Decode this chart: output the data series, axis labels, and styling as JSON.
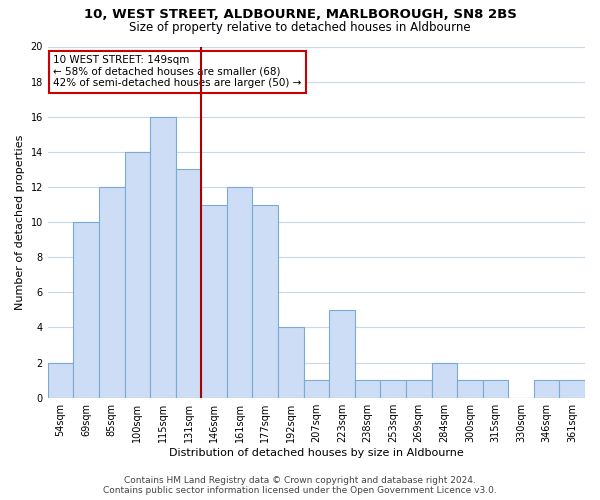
{
  "title": "10, WEST STREET, ALDBOURNE, MARLBOROUGH, SN8 2BS",
  "subtitle": "Size of property relative to detached houses in Aldbourne",
  "xlabel": "Distribution of detached houses by size in Aldbourne",
  "ylabel": "Number of detached properties",
  "categories": [
    "54sqm",
    "69sqm",
    "85sqm",
    "100sqm",
    "115sqm",
    "131sqm",
    "146sqm",
    "161sqm",
    "177sqm",
    "192sqm",
    "207sqm",
    "223sqm",
    "238sqm",
    "253sqm",
    "269sqm",
    "284sqm",
    "300sqm",
    "315sqm",
    "330sqm",
    "346sqm",
    "361sqm"
  ],
  "values": [
    2,
    10,
    12,
    14,
    16,
    13,
    11,
    12,
    11,
    4,
    1,
    5,
    1,
    1,
    1,
    2,
    1,
    1,
    0,
    1,
    1
  ],
  "bar_color": "#ccddf5",
  "bar_edge_color": "#7baad4",
  "vline_color": "#aa0000",
  "vline_x_index": 6,
  "annotation_text": "10 WEST STREET: 149sqm\n← 58% of detached houses are smaller (68)\n42% of semi-detached houses are larger (50) →",
  "annotation_box_color": "#ffffff",
  "annotation_box_edge": "#cc0000",
  "ylim": [
    0,
    20
  ],
  "yticks": [
    0,
    2,
    4,
    6,
    8,
    10,
    12,
    14,
    16,
    18,
    20
  ],
  "footer_line1": "Contains HM Land Registry data © Crown copyright and database right 2024.",
  "footer_line2": "Contains public sector information licensed under the Open Government Licence v3.0.",
  "bg_color": "#ffffff",
  "grid_color": "#c8d8ea",
  "title_fontsize": 9.5,
  "subtitle_fontsize": 8.5,
  "axis_label_fontsize": 8,
  "tick_fontsize": 7,
  "annotation_fontsize": 7.5,
  "footer_fontsize": 6.5
}
